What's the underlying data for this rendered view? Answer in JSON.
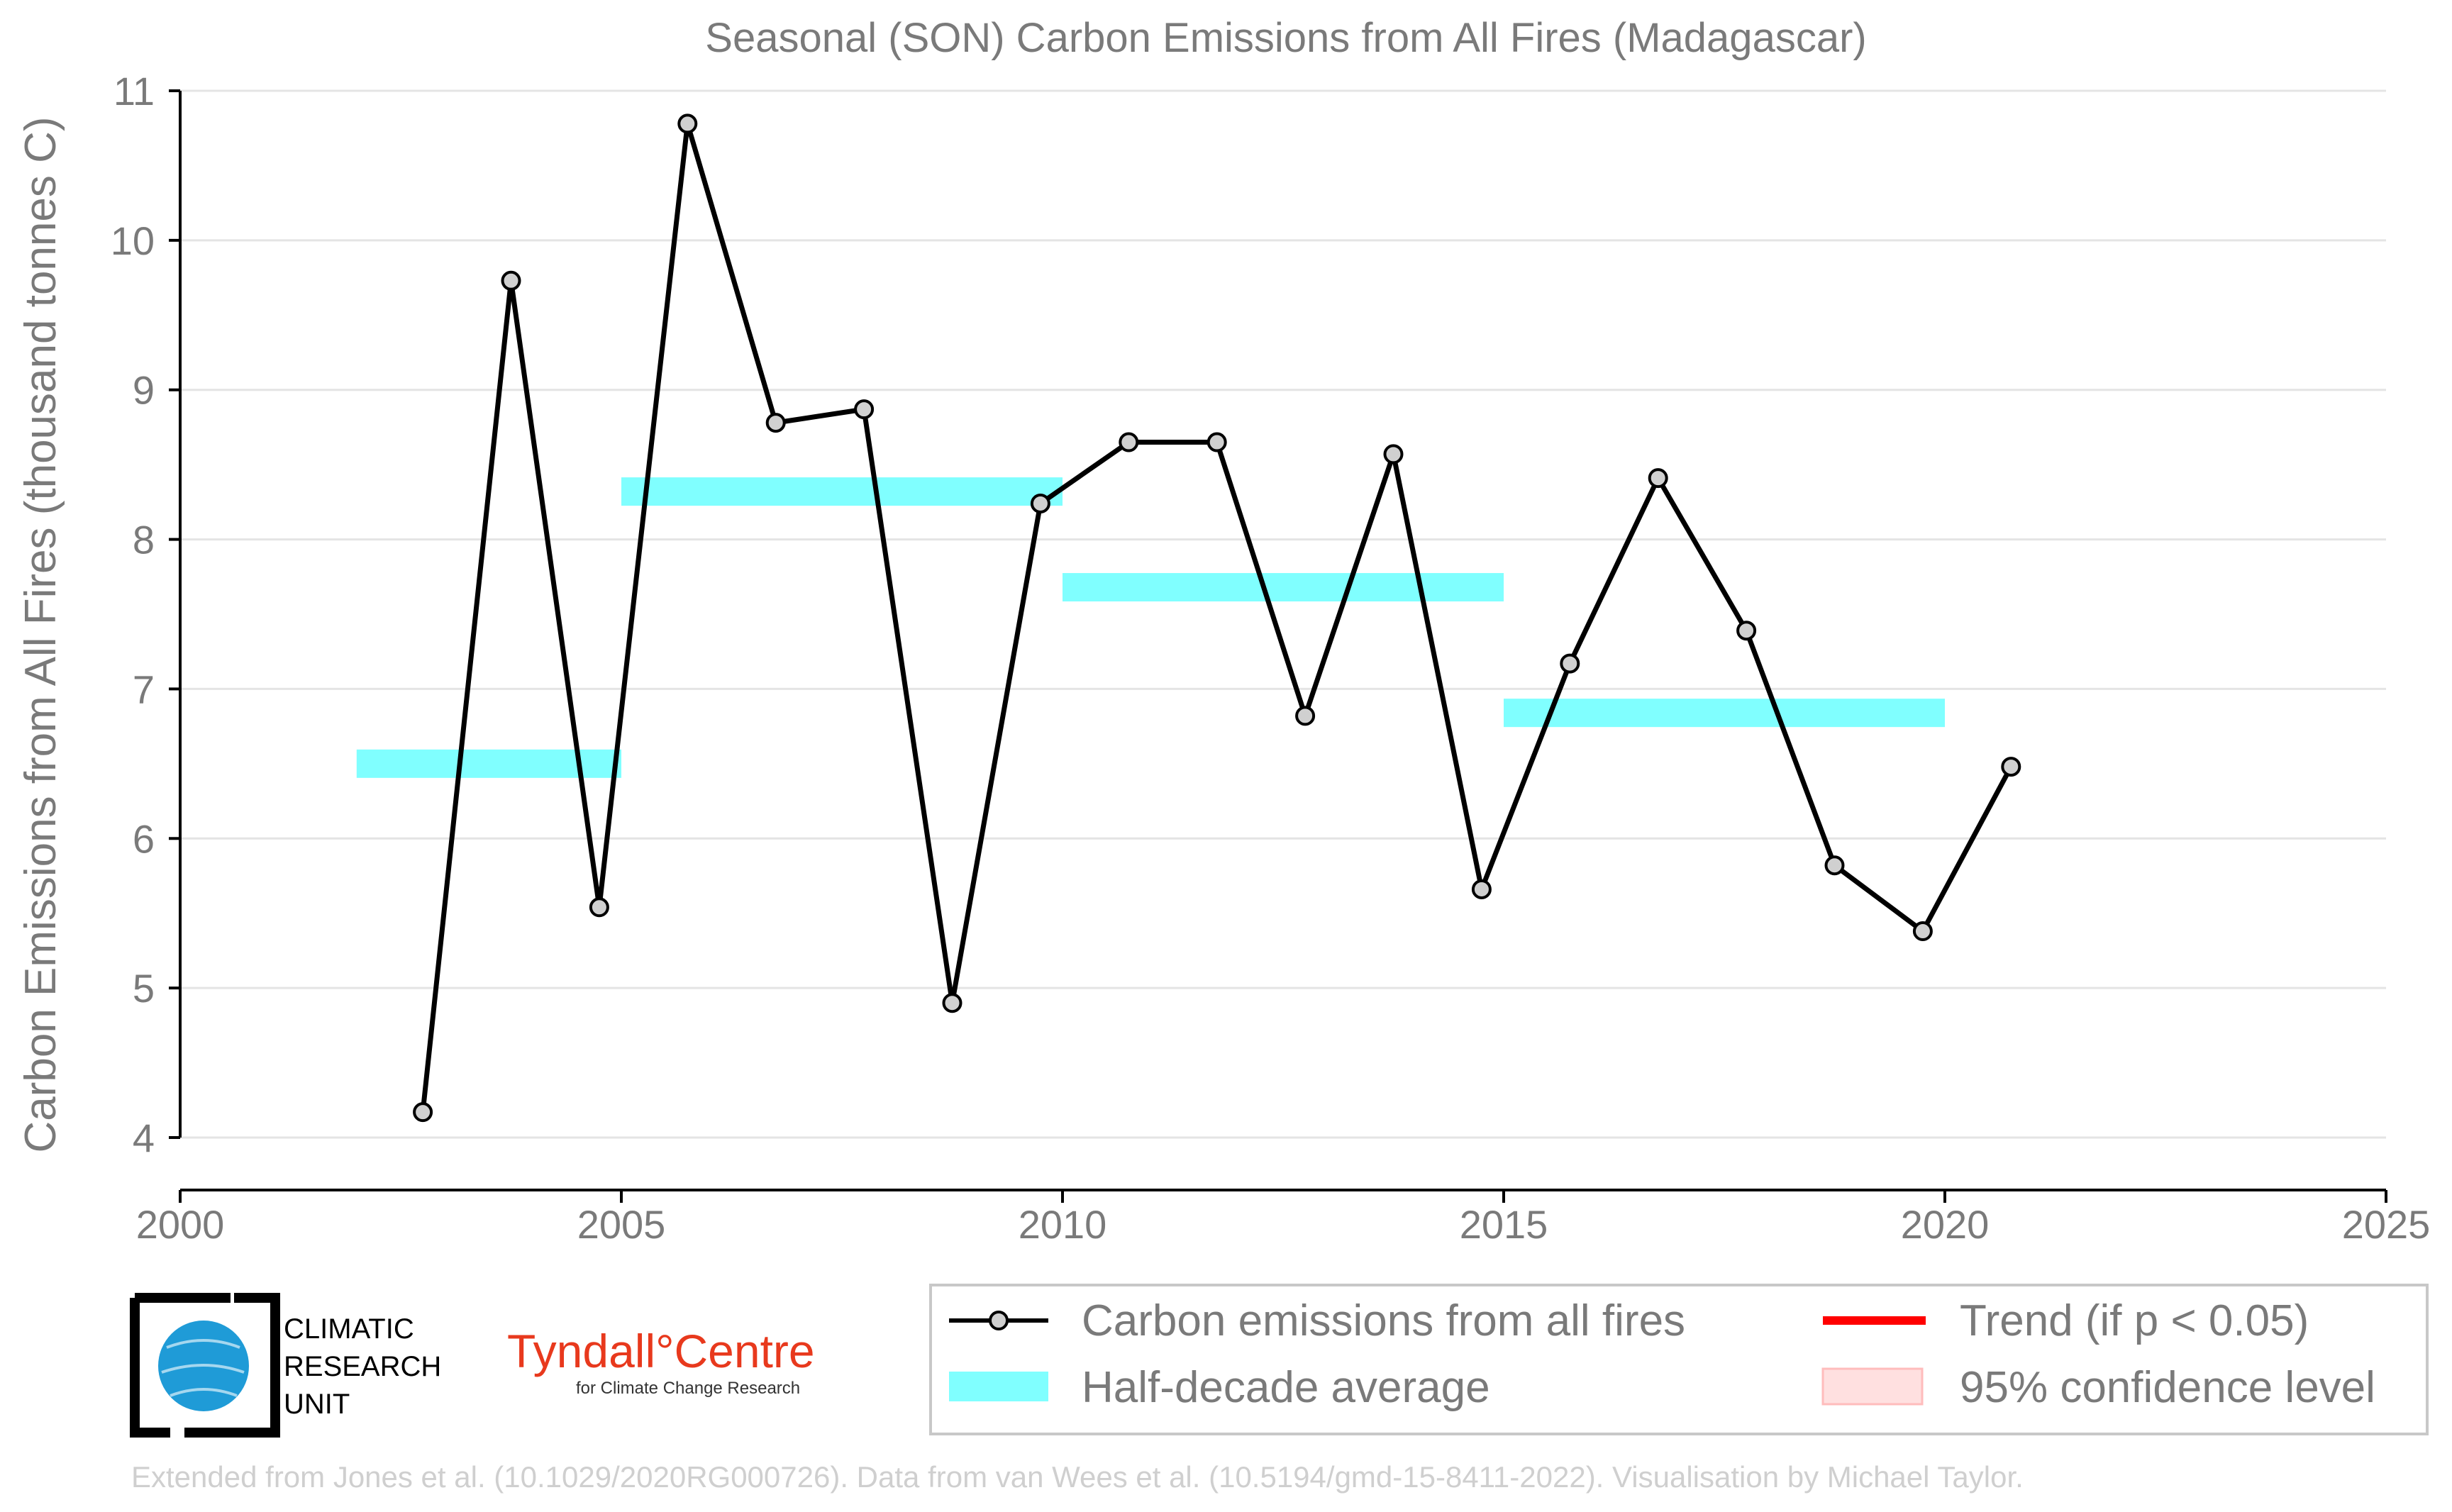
{
  "chart_data": {
    "type": "line",
    "title": "Seasonal (SON) Carbon Emissions from All Fires (Madagascar)",
    "xlabel": "",
    "ylabel": "Carbon Emissions from All Fires (thousand tonnes C)",
    "xlim": [
      2000,
      2025
    ],
    "ylim": [
      4,
      11
    ],
    "xticks": [
      "2000",
      "2005",
      "2010",
      "2015",
      "2020",
      "2025"
    ],
    "yticks": [
      "4",
      "5",
      "6",
      "7",
      "8",
      "9",
      "10",
      "11"
    ],
    "grid": "horizontal",
    "series": [
      {
        "name": "Carbon emissions from all fires",
        "x": [
          2002.75,
          2003.75,
          2004.75,
          2005.75,
          2006.75,
          2007.75,
          2008.75,
          2009.75,
          2010.75,
          2011.75,
          2012.75,
          2013.75,
          2014.75,
          2015.75,
          2016.75,
          2017.75,
          2018.75,
          2019.75,
          2020.75
        ],
        "values": [
          4.17,
          9.73,
          5.54,
          10.78,
          8.78,
          8.87,
          4.9,
          8.24,
          8.65,
          8.65,
          6.82,
          8.57,
          5.66,
          7.17,
          8.41,
          7.39,
          5.82,
          5.38,
          6.48
        ],
        "color": "#000000"
      }
    ],
    "half_decade_average": {
      "name": "Half-decade average",
      "color": "#80ffff",
      "segments": [
        {
          "x_start": 2002,
          "x_end": 2005,
          "value": 6.5
        },
        {
          "x_start": 2005,
          "x_end": 2010,
          "value": 8.32
        },
        {
          "x_start": 2010,
          "x_end": 2015,
          "value": 7.68
        },
        {
          "x_start": 2015,
          "x_end": 2020,
          "value": 6.84
        }
      ]
    },
    "legend": {
      "placement": "bottom-right",
      "items": [
        {
          "label": "Carbon emissions from all fires",
          "color": "#000000"
        },
        {
          "label": "Trend (if p < 0.05)",
          "color": "#ff0000"
        },
        {
          "label": "Half-decade average",
          "color": "#80ffff"
        },
        {
          "label": "95% confidence level",
          "color": "#ffe0e0"
        }
      ]
    }
  },
  "logos": {
    "cru": [
      "CLIMATIC",
      "RESEARCH",
      "UNIT"
    ],
    "tyndall_main": "Tyndall°Centre",
    "tyndall_sub": "for Climate Change Research"
  },
  "footer": "Extended from Jones et al. (10.1029/2020RG000726). Data from van Wees et al. (10.5194/gmd-15-8411-2022). Visualisation by Michael Taylor."
}
